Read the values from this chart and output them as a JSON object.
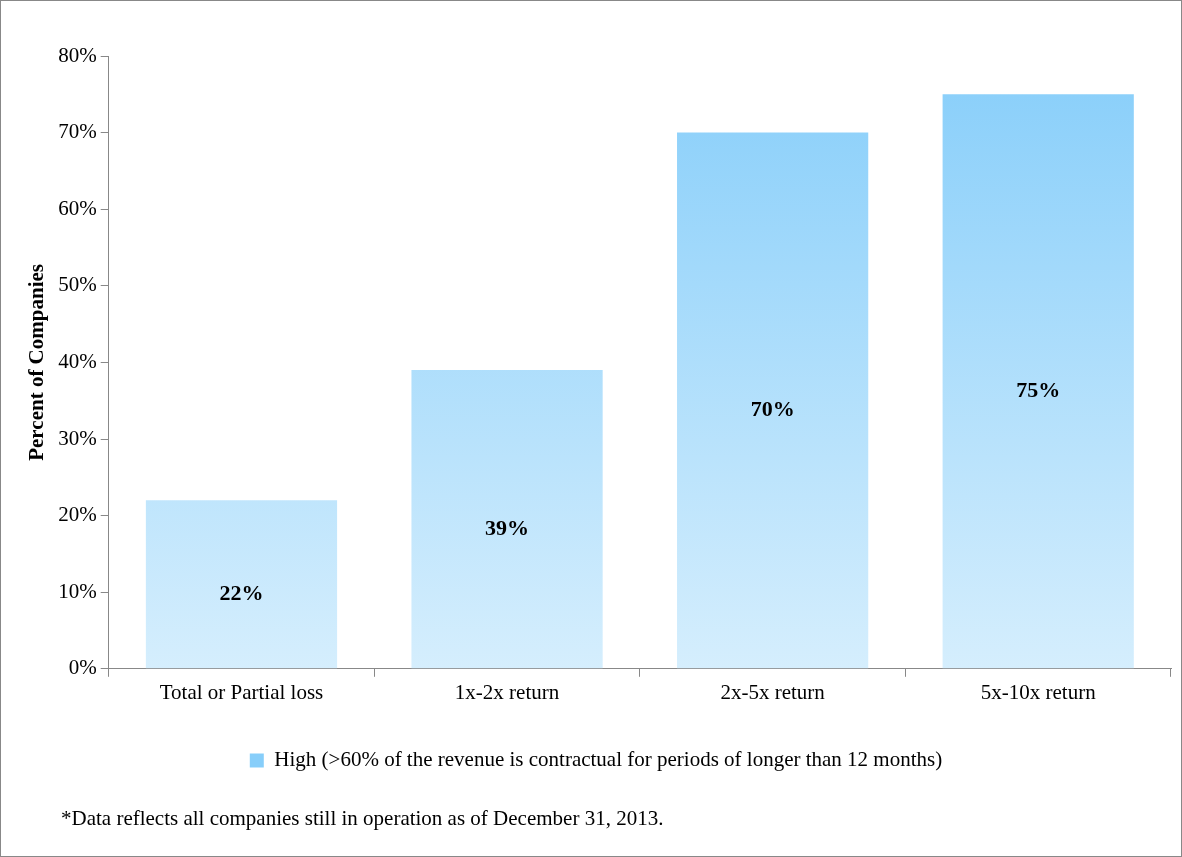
{
  "chart_data": {
    "type": "bar",
    "ylabel": "Percent of Companies",
    "categories": [
      "Total or Partial loss",
      "1x-2x return",
      "2x-5x return",
      "5x-10x return"
    ],
    "series": [
      {
        "name": "High (>60% of the revenue is contractual for periods of longer than 12 months)",
        "color": "#87cefa",
        "values": [
          22,
          39,
          70,
          75
        ],
        "value_labels": [
          "22%",
          "39%",
          "70%",
          "75%"
        ]
      }
    ],
    "ylim": [
      0,
      80
    ],
    "yticks": [
      {
        "value": 0,
        "label": "0%"
      },
      {
        "value": 10,
        "label": "10%"
      },
      {
        "value": 20,
        "label": "20%"
      },
      {
        "value": 30,
        "label": "30%"
      },
      {
        "value": 40,
        "label": "40%"
      },
      {
        "value": 50,
        "label": "50%"
      },
      {
        "value": 60,
        "label": "60%"
      },
      {
        "value": 70,
        "label": "70%"
      },
      {
        "value": 80,
        "label": "80%"
      }
    ],
    "grid": false,
    "legend": "bottom",
    "annotations": [
      "*Data reflects all companies still in operation as of December 31, 2013."
    ]
  }
}
